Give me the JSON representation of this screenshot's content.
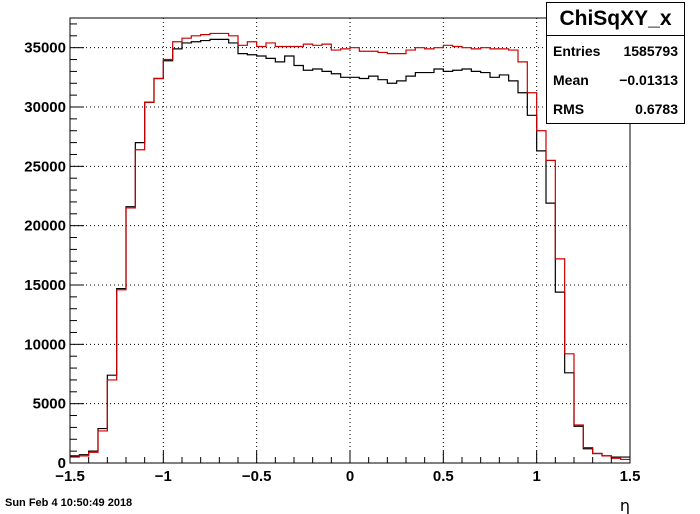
{
  "stats": {
    "title": "ChiSqXY_x",
    "rows": [
      {
        "label": "Entries",
        "value": "1585793"
      },
      {
        "label": "Mean",
        "value": "−0.01313"
      },
      {
        "label": "RMS",
        "value": "0.6783"
      }
    ]
  },
  "datestamp": "Sun Feb  4 10:50:49 2018",
  "chart_data": {
    "type": "line",
    "title": "",
    "xlabel": "η",
    "ylabel": "",
    "xlim": [
      -1.5,
      1.5
    ],
    "ylim": [
      0,
      37500
    ],
    "grid": true,
    "x_ticks": [
      -1.5,
      -1,
      -0.5,
      0,
      0.5,
      1,
      1.5
    ],
    "x_tick_labels": [
      "−1.5",
      "−1",
      "−0.5",
      "0",
      "0.5",
      "1",
      "1.5"
    ],
    "y_ticks": [
      0,
      5000,
      10000,
      15000,
      20000,
      25000,
      30000,
      35000
    ],
    "y_tick_labels": [
      "0",
      "5000",
      "10000",
      "15000",
      "20000",
      "25000",
      "30000",
      "35000"
    ],
    "bin_edges": [
      -1.5,
      -1.45,
      -1.4,
      -1.35,
      -1.3,
      -1.25,
      -1.2,
      -1.15,
      -1.1,
      -1.05,
      -1.0,
      -0.95,
      -0.9,
      -0.85,
      -0.8,
      -0.75,
      -0.7,
      -0.65,
      -0.6,
      -0.55,
      -0.5,
      -0.45,
      -0.4,
      -0.35,
      -0.3,
      -0.25,
      -0.2,
      -0.15,
      -0.1,
      -0.05,
      0.0,
      0.05,
      0.1,
      0.15,
      0.2,
      0.25,
      0.3,
      0.35,
      0.4,
      0.45,
      0.5,
      0.55,
      0.6,
      0.65,
      0.7,
      0.75,
      0.8,
      0.85,
      0.9,
      0.95,
      1.0,
      1.05,
      1.1,
      1.15,
      1.2,
      1.25,
      1.3,
      1.35,
      1.4,
      1.45,
      1.5
    ],
    "series": [
      {
        "color": "#000000",
        "values": [
          600,
          700,
          1000,
          2900,
          7400,
          14700,
          21600,
          27000,
          30400,
          32400,
          33900,
          34900,
          35400,
          35500,
          35600,
          35700,
          35700,
          35400,
          34500,
          34400,
          34300,
          34100,
          33800,
          34300,
          33500,
          33100,
          33200,
          33000,
          32800,
          32500,
          32500,
          32400,
          32600,
          32300,
          32000,
          32200,
          32600,
          32900,
          32900,
          33200,
          33000,
          33100,
          33200,
          33000,
          32900,
          32500,
          32700,
          32200,
          31200,
          29300,
          26300,
          21900,
          14400,
          7600,
          3100,
          1200,
          800,
          600,
          500,
          500
        ]
      },
      {
        "color": "#cc0000",
        "values": [
          500,
          600,
          900,
          2700,
          7000,
          14600,
          21500,
          26400,
          30400,
          32400,
          34000,
          35500,
          35800,
          36000,
          36100,
          36200,
          36200,
          36000,
          35200,
          35500,
          35100,
          35400,
          35100,
          35100,
          35100,
          35300,
          35200,
          35300,
          34800,
          34900,
          35000,
          34700,
          34700,
          34600,
          34500,
          34500,
          34800,
          35000,
          34900,
          35000,
          35200,
          35100,
          35000,
          34900,
          35000,
          34900,
          34900,
          34800,
          33800,
          31200,
          28000,
          25500,
          17200,
          9200,
          3200,
          1300,
          800,
          600,
          400,
          300
        ]
      }
    ]
  }
}
